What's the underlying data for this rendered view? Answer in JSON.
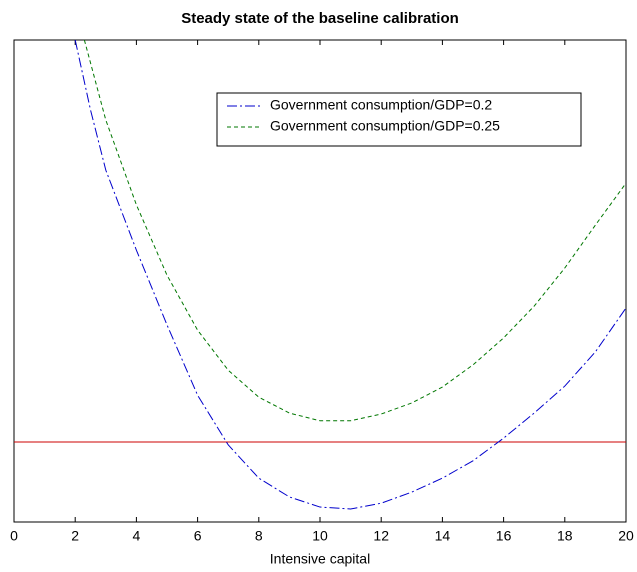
{
  "chart_data": {
    "type": "line",
    "title": "Steady state of the baseline calibration",
    "x_label": "Intensive capital",
    "xlim": [
      0,
      20
    ],
    "xticks": [
      0,
      2,
      4,
      6,
      8,
      10,
      12,
      14,
      16,
      18,
      20
    ],
    "ylim": [
      0,
      100
    ],
    "legend_position": "upper right",
    "hline": {
      "value": 16.6,
      "color": "#cc0000"
    },
    "series": [
      {
        "name": "Government consumption/GDP=0.2",
        "color": "#0000cc",
        "linestyle": "dashdot",
        "x": [
          2,
          2.5,
          3,
          4,
          5,
          6,
          7,
          8,
          9,
          10,
          11,
          12,
          13,
          14,
          15,
          16,
          17,
          18,
          19,
          20
        ],
        "values": [
          100,
          85.5,
          73,
          56.4,
          40.9,
          26.3,
          16,
          9.1,
          5.2,
          3.1,
          2.7,
          3.9,
          6.2,
          9.1,
          12.7,
          17.4,
          22.6,
          28.2,
          35.3,
          44.4
        ]
      },
      {
        "name": "Government consumption/GDP=0.25",
        "color": "#007700",
        "linestyle": "dashed",
        "x": [
          2.3,
          3,
          4,
          5,
          6,
          7,
          8,
          9,
          10,
          11,
          12,
          13,
          14,
          15,
          16,
          17,
          18,
          19,
          20
        ],
        "values": [
          100,
          83.4,
          65.8,
          51.2,
          39.8,
          31.5,
          25.9,
          22.6,
          21,
          21,
          22.4,
          24.7,
          28,
          32.6,
          38.2,
          44.8,
          52.7,
          61.6,
          70.3
        ]
      }
    ]
  }
}
